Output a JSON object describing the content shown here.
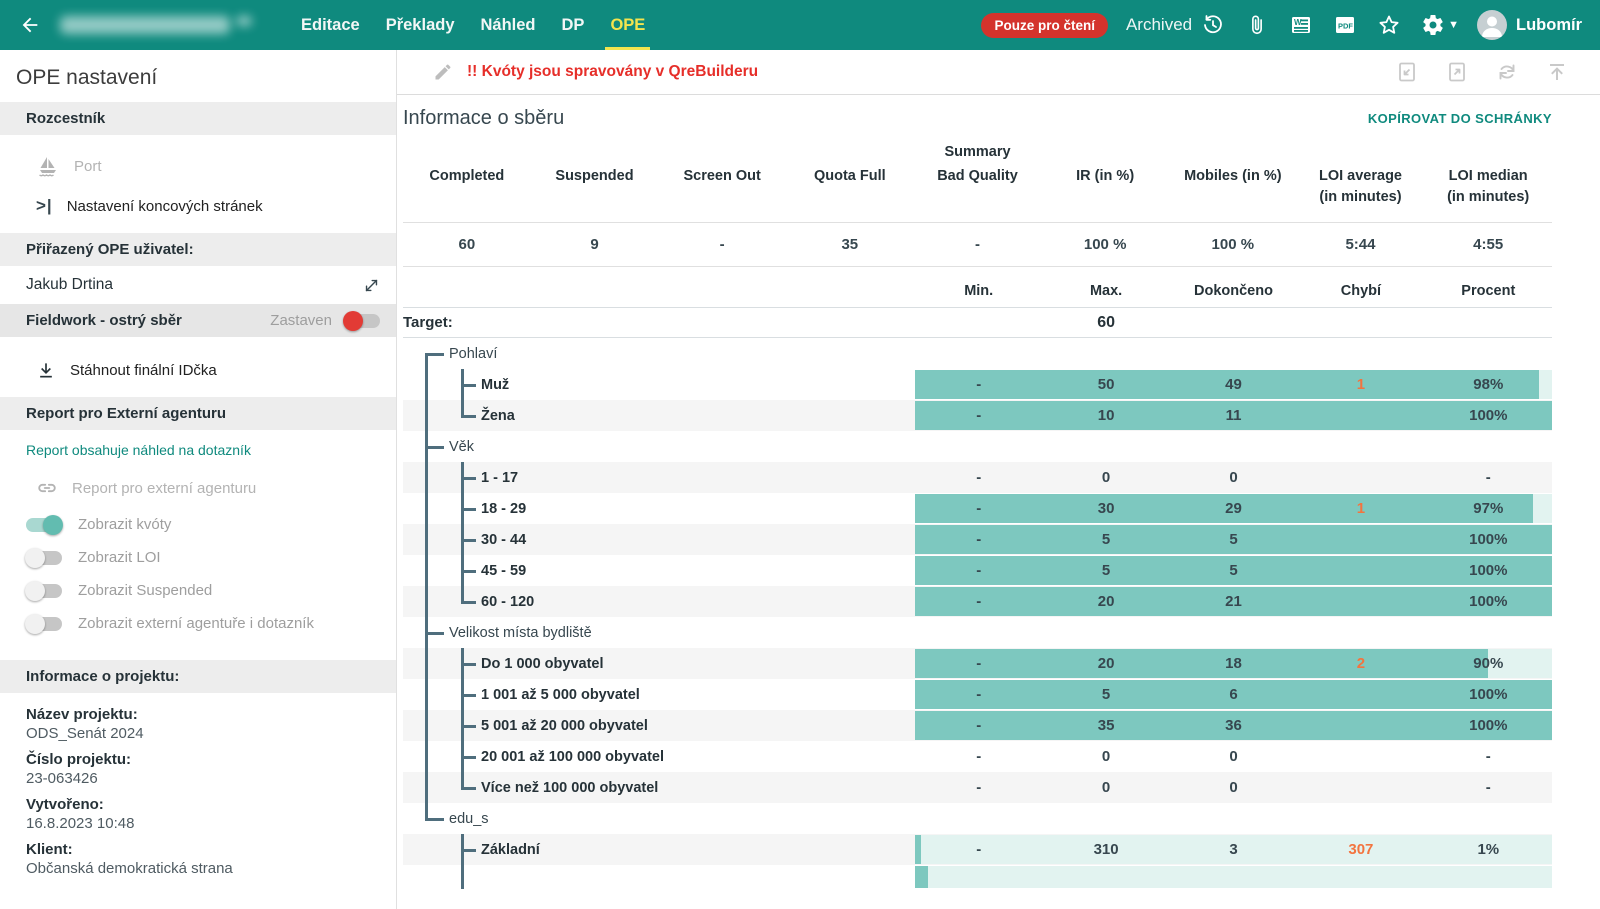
{
  "topbar": {
    "nav_items": [
      "Editace",
      "Překlady",
      "Náhled",
      "DP",
      "OPE"
    ],
    "active_nav": "OPE",
    "read_only_badge": "Pouze pro čtení",
    "archived_label": "Archived",
    "user_name": "Lubomír",
    "icons": [
      "back-arrow-icon",
      "history-restore-icon",
      "paperclip-icon",
      "word-export-icon",
      "pdf-export-icon",
      "favorite-star-icon",
      "settings-gear-icon",
      "user-avatar"
    ]
  },
  "sidebar": {
    "title": "OPE nastavení",
    "rozcestnik": {
      "header": "Rozcestník",
      "items": [
        {
          "label": "Port",
          "icon": "sailboat-icon",
          "disabled": true
        },
        {
          "label": "Nastavení koncových stránek",
          "icon": "end-pages-icon",
          "disabled": false
        }
      ]
    },
    "assigned_user": {
      "header": "Přiřazený OPE uživatel:",
      "name": "Jakub Drtina",
      "icon": "unassign-icon"
    },
    "fieldwork": {
      "header": "Fieldwork - ostrý sběr",
      "status": "Zastaven",
      "toggle_on": false
    },
    "download_ids_label": "Stáhnout finální IDčka",
    "external_report": {
      "header": "Report pro Externí agenturu",
      "preview_link": "Report obsahuje náhled na dotazník",
      "report_link_label": "Report pro externí agenturu",
      "toggles": [
        {
          "label": "Zobrazit kvóty",
          "on": true
        },
        {
          "label": "Zobrazit LOI",
          "on": false
        },
        {
          "label": "Zobrazit Suspended",
          "on": false
        },
        {
          "label": "Zobrazit externí agentuře i dotazník",
          "on": false
        }
      ]
    },
    "project_info": {
      "header": "Informace o projektu:",
      "fields": [
        {
          "label": "Název projektu:",
          "value": "ODS_Senát 2024"
        },
        {
          "label": "Číslo projektu:",
          "value": "23-063426"
        },
        {
          "label": "Vytvořeno:",
          "value": "16.8.2023 10:48"
        },
        {
          "label": "Klient:",
          "value": "Občanská demokratická strana"
        }
      ]
    }
  },
  "main": {
    "warning": "!! Kvóty jsou spravovány v QreBuilderu",
    "section_title": "Informace o sběru",
    "copy_link": "KOPÍROVAT DO SCHRÁNKY",
    "summary": {
      "group_label": "Summary",
      "columns": [
        "Completed",
        "Suspended",
        "Screen Out",
        "Quota Full",
        "Bad Quality",
        "IR (in %)",
        "Mobiles (in %)",
        "LOI average (in minutes)",
        "LOI median (in minutes)"
      ],
      "values": [
        "60",
        "9",
        "-",
        "35",
        "-",
        "100 %",
        "100 %",
        "5:44",
        "4:55"
      ]
    },
    "quota": {
      "columns": [
        "Min.",
        "Max.",
        "Dokončeno",
        "Chybí",
        "Procent"
      ],
      "target_label": "Target:",
      "target_value": "60",
      "rows": [
        {
          "type": "group",
          "label": "Pohlaví",
          "tree": {
            "trunk": "start",
            "tick": "root"
          }
        },
        {
          "type": "leaf",
          "label": "Muž",
          "shade": false,
          "bar": 98,
          "values": [
            "-",
            "50",
            "49",
            "1",
            "98%"
          ],
          "tree": {
            "trunk": "full",
            "branch": "full",
            "tick": "child"
          }
        },
        {
          "type": "leaf",
          "label": "Žena",
          "shade": true,
          "bar": 100,
          "values": [
            "-",
            "10",
            "11",
            "",
            "100%"
          ],
          "tree": {
            "trunk": "full",
            "branch": "end",
            "tick": "child"
          }
        },
        {
          "type": "group",
          "label": "Věk",
          "tree": {
            "trunk": "full",
            "tick": "root"
          }
        },
        {
          "type": "leaf",
          "label": "1 - 17",
          "shade": true,
          "bar": null,
          "values": [
            "-",
            "0",
            "0",
            "",
            "-"
          ],
          "tree": {
            "trunk": "full",
            "branch": "full",
            "tick": "child"
          }
        },
        {
          "type": "leaf",
          "label": "18 - 29",
          "shade": false,
          "bar": 97,
          "values": [
            "-",
            "30",
            "29",
            "1",
            "97%"
          ],
          "tree": {
            "trunk": "full",
            "branch": "full",
            "tick": "child"
          }
        },
        {
          "type": "leaf",
          "label": "30 - 44",
          "shade": true,
          "bar": 100,
          "values": [
            "-",
            "5",
            "5",
            "",
            "100%"
          ],
          "tree": {
            "trunk": "full",
            "branch": "full",
            "tick": "child"
          }
        },
        {
          "type": "leaf",
          "label": "45 - 59",
          "shade": false,
          "bar": 100,
          "values": [
            "-",
            "5",
            "5",
            "",
            "100%"
          ],
          "tree": {
            "trunk": "full",
            "branch": "full",
            "tick": "child"
          }
        },
        {
          "type": "leaf",
          "label": "60 - 120",
          "shade": true,
          "bar": 100,
          "values": [
            "-",
            "20",
            "21",
            "",
            "100%"
          ],
          "tree": {
            "trunk": "full",
            "branch": "end",
            "tick": "child"
          }
        },
        {
          "type": "group",
          "label": "Velikost místa bydliště",
          "tree": {
            "trunk": "full",
            "tick": "root"
          }
        },
        {
          "type": "leaf",
          "label": "Do 1 000 obyvatel",
          "shade": true,
          "bar": 90,
          "values": [
            "-",
            "20",
            "18",
            "2",
            "90%"
          ],
          "tree": {
            "trunk": "full",
            "branch": "full",
            "tick": "child"
          }
        },
        {
          "type": "leaf",
          "label": "1 001 až 5 000 obyvatel",
          "shade": false,
          "bar": 100,
          "values": [
            "-",
            "5",
            "6",
            "",
            "100%"
          ],
          "tree": {
            "trunk": "full",
            "branch": "full",
            "tick": "child"
          }
        },
        {
          "type": "leaf",
          "label": "5 001 až 20 000 obyvatel",
          "shade": true,
          "bar": 100,
          "values": [
            "-",
            "35",
            "36",
            "",
            "100%"
          ],
          "tree": {
            "trunk": "full",
            "branch": "full",
            "tick": "child"
          }
        },
        {
          "type": "leaf",
          "label": "20 001 až 100 000 obyvatel",
          "shade": false,
          "bar": null,
          "values": [
            "-",
            "0",
            "0",
            "",
            "-"
          ],
          "tree": {
            "trunk": "full",
            "branch": "full",
            "tick": "child"
          }
        },
        {
          "type": "leaf",
          "label": "Více než 100 000 obyvatel",
          "shade": true,
          "bar": null,
          "values": [
            "-",
            "0",
            "0",
            "",
            "-"
          ],
          "tree": {
            "trunk": "full",
            "branch": "end",
            "tick": "child"
          }
        },
        {
          "type": "group",
          "label": "edu_s",
          "tree": {
            "trunk": "end",
            "tick": "root"
          }
        },
        {
          "type": "leaf",
          "label": "Základní",
          "shade": true,
          "bar": 1,
          "values": [
            "-",
            "310",
            "3",
            "307",
            "1%"
          ],
          "tree": {
            "branch": "full",
            "tick": "child"
          }
        },
        {
          "type": "partial",
          "label": null,
          "shade": false,
          "bar": 2,
          "values": null,
          "tree": {
            "branch": "full"
          }
        }
      ]
    }
  },
  "colors": {
    "topbar_teal": "#0f8a7e",
    "active_tab_yellow": "#f3e44e",
    "readonly_red": "#d4332c",
    "warning_red": "#e62e29",
    "bar_fill": "#7dc8bf",
    "bar_remainder": "#e2f3f0",
    "missing_orange": "#f3743f",
    "tree_line": "#4f6e7d",
    "link_teal": "#0f8a7e"
  }
}
